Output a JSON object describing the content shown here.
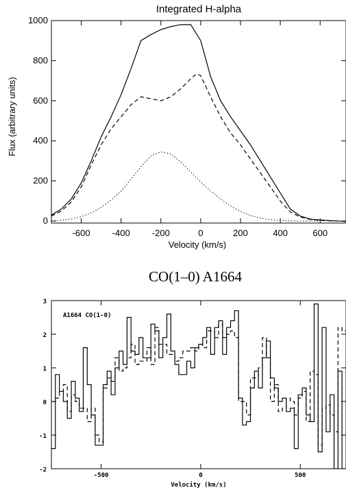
{
  "chart_data": [
    {
      "type": "line",
      "title": "Integrated H-alpha",
      "xlabel": "Velocity (km/s)",
      "ylabel": "Flux (arbitrary units)",
      "xlim": [
        -750,
        730
      ],
      "ylim": [
        -10,
        1000
      ],
      "xticks": [
        -600,
        -400,
        -200,
        0,
        200,
        400,
        600
      ],
      "yticks": [
        0,
        200,
        400,
        600,
        800,
        1000
      ],
      "xtick_labels": [
        "-600",
        "-400",
        "-200",
        "0",
        "200",
        "400",
        "600"
      ],
      "ytick_labels": [
        "0",
        "200",
        "400",
        "600",
        "800",
        "1000"
      ],
      "grid": false,
      "series": [
        {
          "style": "solid",
          "x": [
            -750,
            -700,
            -650,
            -600,
            -550,
            -500,
            -450,
            -400,
            -350,
            -300,
            -250,
            -200,
            -150,
            -100,
            -50,
            0,
            50,
            100,
            150,
            200,
            250,
            300,
            350,
            400,
            450,
            500,
            550,
            600,
            650,
            700,
            730
          ],
          "y": [
            30,
            60,
            110,
            190,
            300,
            420,
            520,
            630,
            760,
            900,
            930,
            955,
            970,
            980,
            980,
            900,
            720,
            600,
            520,
            450,
            380,
            300,
            220,
            140,
            60,
            25,
            10,
            5,
            2,
            0,
            -2
          ]
        },
        {
          "style": "dashed",
          "x": [
            -750,
            -700,
            -650,
            -600,
            -550,
            -500,
            -450,
            -400,
            -350,
            -300,
            -250,
            -200,
            -150,
            -100,
            -50,
            -20,
            0,
            50,
            100,
            150,
            200,
            250,
            300,
            350,
            400,
            450,
            500,
            550,
            600,
            650,
            700,
            730
          ],
          "y": [
            25,
            50,
            95,
            170,
            280,
            380,
            460,
            520,
            580,
            620,
            610,
            600,
            620,
            660,
            710,
            735,
            725,
            620,
            520,
            440,
            380,
            310,
            240,
            170,
            100,
            45,
            20,
            8,
            3,
            1,
            0,
            -2
          ]
        },
        {
          "style": "dotted",
          "x": [
            -750,
            -700,
            -650,
            -600,
            -550,
            -500,
            -450,
            -400,
            -350,
            -300,
            -250,
            -200,
            -150,
            -100,
            -50,
            0,
            50,
            100,
            150,
            200,
            250,
            300,
            350,
            400,
            450,
            500,
            550,
            600
          ],
          "y": [
            0,
            4,
            10,
            22,
            40,
            68,
            105,
            150,
            210,
            270,
            325,
            345,
            335,
            295,
            245,
            195,
            150,
            110,
            75,
            48,
            28,
            15,
            7,
            3,
            1,
            0,
            0,
            0
          ]
        }
      ]
    },
    {
      "type": "line",
      "title": "CO(1–0) A1664",
      "annotation": "A1664 CO(1-0)",
      "xlabel": "Velocity (km/s)",
      "ylabel": "",
      "xlim": [
        -750,
        730
      ],
      "ylim": [
        -2,
        3
      ],
      "xticks": [
        -500,
        0,
        500
      ],
      "yticks": [
        -2,
        -1,
        0,
        1,
        2,
        3
      ],
      "xtick_labels": [
        "-500",
        "0",
        "500"
      ],
      "ytick_labels": [
        "-2",
        "-1",
        "0",
        "1",
        "2",
        "3"
      ],
      "grid": false,
      "series": [
        {
          "style": "steps-solid",
          "x": [
            -750,
            -730,
            -710,
            -690,
            -670,
            -650,
            -630,
            -610,
            -590,
            -570,
            -550,
            -530,
            -510,
            -490,
            -470,
            -450,
            -430,
            -410,
            -390,
            -370,
            -350,
            -330,
            -310,
            -290,
            -270,
            -250,
            -230,
            -210,
            -190,
            -170,
            -150,
            -130,
            -110,
            -90,
            -70,
            -50,
            -30,
            -10,
            10,
            30,
            50,
            70,
            90,
            110,
            130,
            150,
            170,
            190,
            210,
            230,
            250,
            270,
            290,
            310,
            330,
            350,
            370,
            390,
            410,
            430,
            450,
            470,
            490,
            510,
            530,
            550,
            570,
            590,
            610,
            630,
            650,
            670,
            690,
            710
          ],
          "y": [
            -1.4,
            0.8,
            0.3,
            0.0,
            -0.5,
            0.6,
            0.1,
            -0.3,
            1.6,
            0.5,
            -0.4,
            -1.3,
            -1.3,
            0.5,
            0.9,
            0.2,
            1.0,
            1.5,
            1.1,
            2.5,
            1.5,
            1.4,
            1.9,
            1.3,
            1.3,
            2.3,
            2.1,
            1.3,
            1.9,
            2.6,
            1.5,
            1.1,
            0.8,
            0.8,
            1.2,
            1.0,
            1.6,
            1.7,
            1.9,
            2.2,
            1.4,
            2.2,
            2.4,
            1.4,
            2.2,
            2.4,
            2.7,
            0.1,
            -0.7,
            -0.6,
            0.4,
            0.9,
            0.4,
            1.3,
            1.8,
            0.7,
            0.4,
            0.0,
            0.1,
            -0.3,
            -0.2,
            -1.4,
            0.2,
            0.4,
            -0.4,
            -0.6,
            2.9,
            -1.5,
            2.2,
            -0.9,
            0.2,
            -2.0,
            0.9,
            -2.0
          ]
        },
        {
          "style": "steps-dashed",
          "x": [
            -750,
            -730,
            -710,
            -690,
            -670,
            -650,
            -630,
            -610,
            -590,
            -570,
            -550,
            -530,
            -510,
            -490,
            -470,
            -450,
            -430,
            -410,
            -390,
            -370,
            -350,
            -330,
            -310,
            -290,
            -270,
            -250,
            -230,
            -210,
            -190,
            -170,
            -150,
            -130,
            -110,
            -90,
            -70,
            -50,
            -30,
            -10,
            10,
            30,
            50,
            70,
            90,
            110,
            130,
            150,
            170,
            190,
            210,
            230,
            250,
            270,
            290,
            310,
            330,
            350,
            370,
            390,
            410,
            430,
            450,
            470,
            490,
            510,
            530,
            550,
            570,
            590,
            610,
            630,
            650,
            670,
            690,
            710
          ],
          "y": [
            0.0,
            0.1,
            0.3,
            0.5,
            -0.3,
            0.2,
            0.0,
            -0.2,
            -0.2,
            -0.6,
            -0.2,
            -1.0,
            -1.2,
            0.4,
            0.7,
            0.6,
            1.3,
            0.9,
            1.0,
            1.3,
            1.7,
            1.1,
            1.2,
            1.2,
            1.6,
            1.1,
            2.2,
            1.7,
            1.7,
            1.4,
            1.4,
            1.2,
            1.3,
            1.5,
            1.5,
            1.6,
            1.5,
            1.7,
            1.6,
            2.1,
            2.1,
            1.9,
            2.3,
            1.9,
            2.0,
            2.1,
            1.9,
            0.0,
            0.0,
            -0.4,
            0.7,
            0.7,
            1.0,
            1.9,
            1.3,
            0.0,
            0.5,
            -0.3,
            -0.2,
            0.1,
            0.0,
            -0.4,
            0.1,
            0.3,
            -0.6,
            0.9,
            0.8,
            -1.3,
            -0.2,
            -0.1,
            -0.4,
            -0.9,
            2.2,
            2.1
          ]
        }
      ]
    }
  ]
}
